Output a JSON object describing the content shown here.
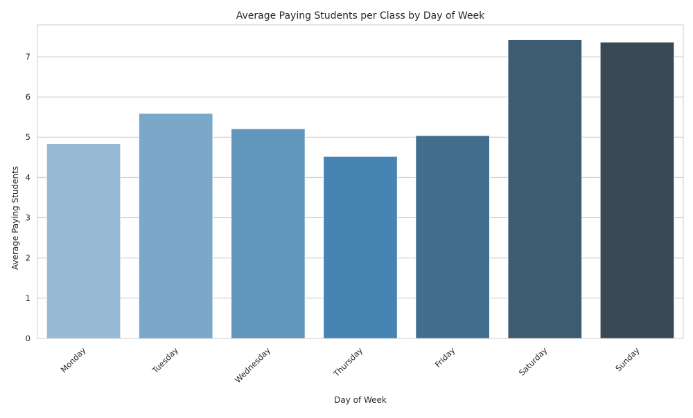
{
  "chart_data": {
    "type": "bar",
    "title": "Average Paying Students per Class by Day of Week",
    "xlabel": "Day of Week",
    "ylabel": "Average Paying Students",
    "categories": [
      "Monday",
      "Tuesday",
      "Wednesday",
      "Thursday",
      "Friday",
      "Saturday",
      "Sunday"
    ],
    "values": [
      4.84,
      5.59,
      5.21,
      4.52,
      5.04,
      7.42,
      7.36
    ],
    "colors": [
      "#98bad5",
      "#7ba8c9",
      "#6396bc",
      "#4684b3",
      "#436f8f",
      "#3d5b71",
      "#384953"
    ],
    "ylim": [
      0,
      7.79
    ],
    "yticks": [
      0,
      1,
      2,
      3,
      4,
      5,
      6,
      7
    ],
    "grid": "horizontal",
    "style": {
      "background": "#ffffff",
      "grid_color": "#cccccc",
      "frame_color": "#cccccc"
    }
  }
}
